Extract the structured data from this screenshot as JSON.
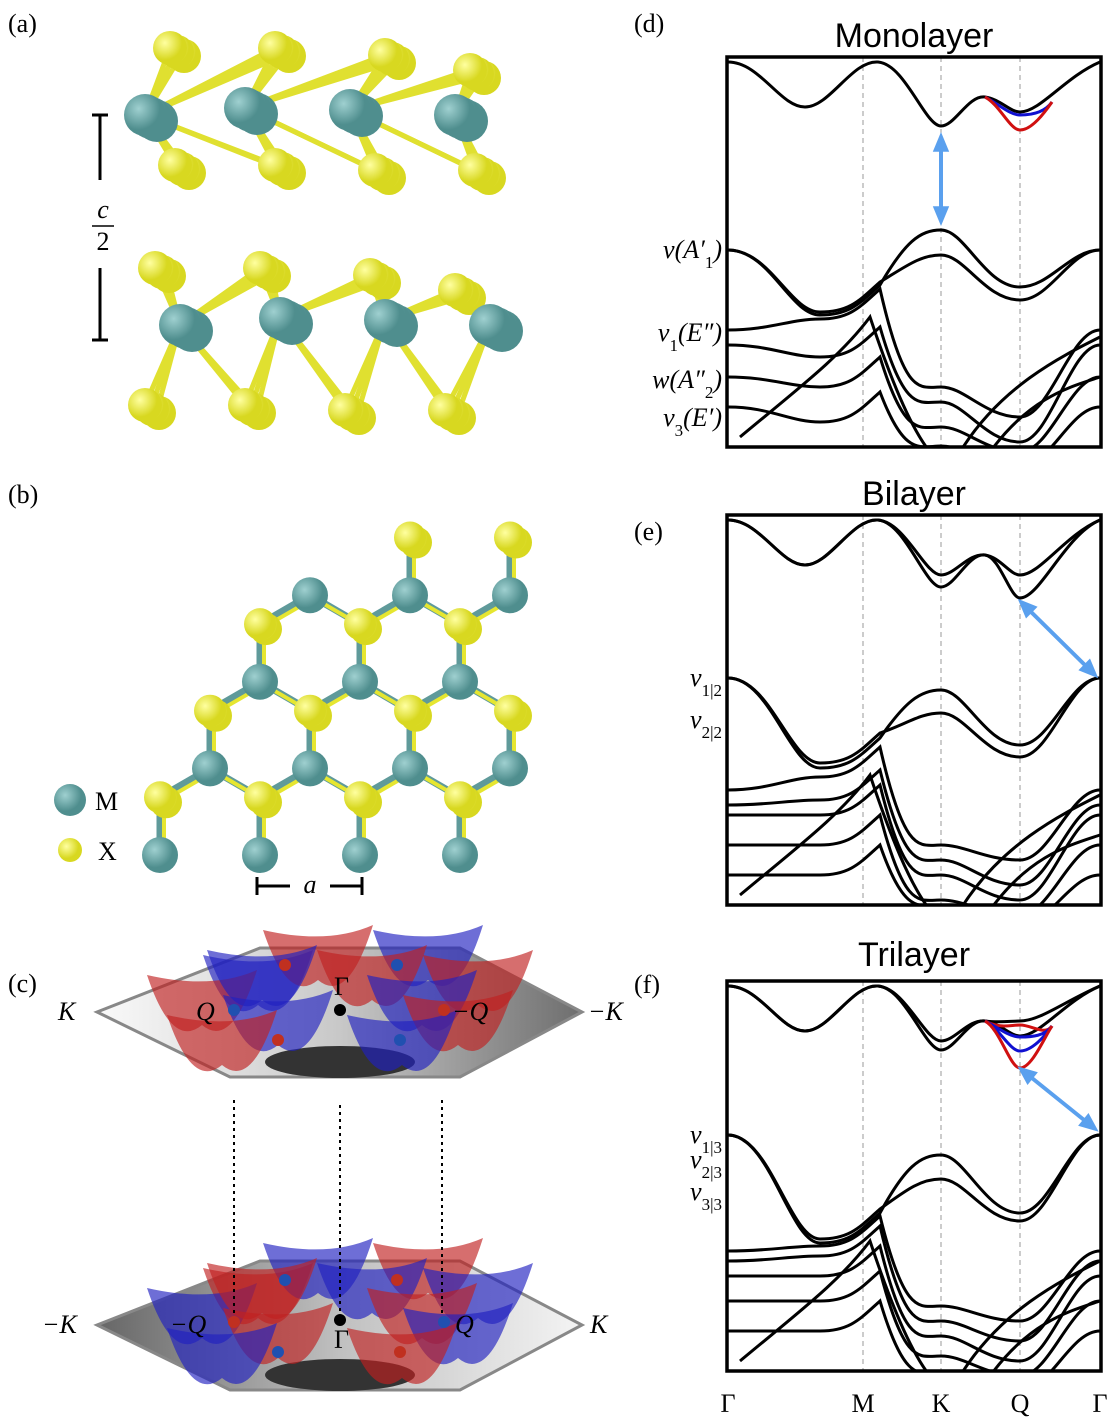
{
  "a": {
    "label": "(a)",
    "separation": {
      "numerator": "c",
      "denominator": "2"
    }
  },
  "b": {
    "label": "(b)",
    "legend": [
      "M",
      "X"
    ],
    "lattice_constant": "a"
  },
  "c": {
    "label": "(c)",
    "upper_plane": {
      "left": "K",
      "q_left": "Q",
      "center": "Γ",
      "q_right": "−Q",
      "right": "−K"
    },
    "lower_plane": {
      "left": "−K",
      "q_left": "−Q",
      "center": "Γ",
      "q_right": "Q",
      "right": "K"
    }
  },
  "d": {
    "label": "(d)",
    "title": "Monolayer",
    "band_labels": [
      {
        "text": "v(A′",
        "sub": "1",
        "tail": ")"
      },
      {
        "text": "v",
        "sub": "1",
        "tail": "(E″)"
      },
      {
        "text": "w(A″",
        "sub": "2",
        "tail": ")"
      },
      {
        "text": "v",
        "sub": "3",
        "tail": "(E′)"
      }
    ]
  },
  "e": {
    "label": "(e)",
    "title": "Bilayer",
    "band_labels": [
      {
        "text": "v",
        "sub": "1|2"
      },
      {
        "text": "v",
        "sub": "2|2"
      }
    ]
  },
  "f": {
    "label": "(f)",
    "title": "Trilayer",
    "band_labels": [
      {
        "text": "v",
        "sub": "1|3"
      },
      {
        "text": "v",
        "sub": "2|3"
      },
      {
        "text": "v",
        "sub": "3|3"
      }
    ]
  },
  "k_path": [
    "Γ",
    "M",
    "K",
    "Q",
    "Γ"
  ]
}
